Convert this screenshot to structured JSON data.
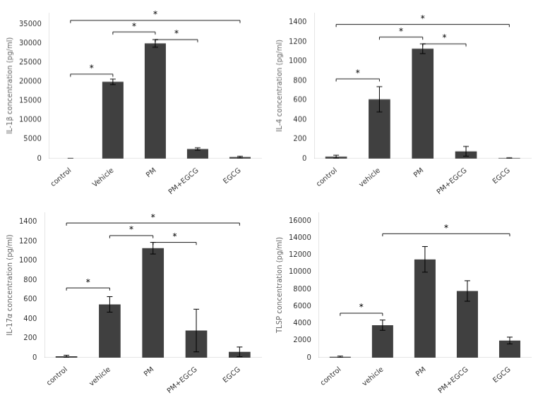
{
  "chart_data": [
    {
      "type": "bar",
      "ylabel": "IL-1β concentration (pg/ml)",
      "categories": [
        "control",
        "Vehicle",
        "PM",
        "PM+EGCG",
        "EGCG"
      ],
      "values": [
        0,
        20000,
        30000,
        2500,
        400
      ],
      "errors": [
        0,
        700,
        1000,
        300,
        200
      ],
      "color": "#404040",
      "ylim": [
        0,
        38000
      ],
      "yticks": [
        0,
        5000,
        10000,
        15000,
        20000,
        25000,
        30000,
        35000
      ],
      "grid": false,
      "annotations": [
        {
          "from": "control",
          "to": "Vehicle",
          "y": 22000,
          "label": "*"
        },
        {
          "from": "Vehicle",
          "to": "PM",
          "y": 33000,
          "label": "*"
        },
        {
          "from": "PM",
          "to": "PM+EGCG",
          "y": 31000,
          "label": "*"
        },
        {
          "from": "control",
          "to": "EGCG",
          "y": 36000,
          "label": "*"
        }
      ]
    },
    {
      "type": "bar",
      "ylabel": "IL-4 concentration (pg/ml)",
      "categories": [
        "control",
        "vehicle",
        "PM",
        "PM+EGCG",
        "EGCG"
      ],
      "values": [
        20,
        610,
        1130,
        75,
        5
      ],
      "errors": [
        15,
        130,
        50,
        50,
        3
      ],
      "color": "#404040",
      "ylim": [
        0,
        1500
      ],
      "yticks": [
        0,
        200,
        400,
        600,
        800,
        1000,
        1200,
        1400
      ],
      "grid": false,
      "annotations": [
        {
          "from": "control",
          "to": "vehicle",
          "y": 820,
          "label": "*"
        },
        {
          "from": "vehicle",
          "to": "PM",
          "y": 1250,
          "label": "*"
        },
        {
          "from": "PM",
          "to": "PM+EGCG",
          "y": 1180,
          "label": "*"
        },
        {
          "from": "control",
          "to": "EGCG",
          "y": 1380,
          "label": "*"
        }
      ]
    },
    {
      "type": "bar",
      "ylabel": "IL-17α concentration (pg/ml)",
      "categories": [
        "control",
        "vehicle",
        "PM",
        "PM+EGCG",
        "EGCG"
      ],
      "values": [
        15,
        550,
        1130,
        280,
        60
      ],
      "errors": [
        10,
        80,
        60,
        220,
        50
      ],
      "color": "#404040",
      "ylim": [
        0,
        1500
      ],
      "yticks": [
        0,
        200,
        400,
        600,
        800,
        1000,
        1200,
        1400
      ],
      "grid": false,
      "annotations": [
        {
          "from": "control",
          "to": "vehicle",
          "y": 720,
          "label": "*"
        },
        {
          "from": "vehicle",
          "to": "PM",
          "y": 1260,
          "label": "*"
        },
        {
          "from": "PM",
          "to": "PM+EGCG",
          "y": 1190,
          "label": "*"
        },
        {
          "from": "control",
          "to": "EGCG",
          "y": 1390,
          "label": "*"
        }
      ]
    },
    {
      "type": "bar",
      "ylabel": "TLSP concentration (pg/ml)",
      "categories": [
        "control",
        "vehicle",
        "PM",
        "PM+EGCG",
        "EGCG"
      ],
      "values": [
        100,
        3800,
        11500,
        7800,
        2000
      ],
      "errors": [
        80,
        600,
        1500,
        1200,
        400
      ],
      "color": "#404040",
      "ylim": [
        0,
        17000
      ],
      "yticks": [
        0,
        2000,
        4000,
        6000,
        8000,
        10000,
        12000,
        14000,
        16000
      ],
      "grid": false,
      "annotations": [
        {
          "from": "control",
          "to": "vehicle",
          "y": 5200,
          "label": "*"
        },
        {
          "from": "vehicle",
          "to": "EGCG",
          "y": 14500,
          "label": "*"
        }
      ]
    }
  ]
}
